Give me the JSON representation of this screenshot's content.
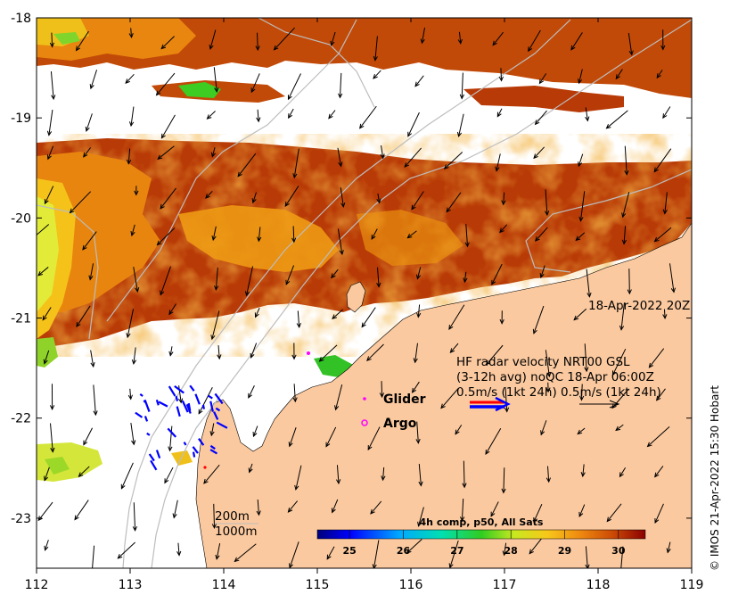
{
  "timestamp_label": "18-Apr-2022 20Z",
  "hf_radar": {
    "line1": "HF radar velocity  NRT00 GSL",
    "line2": "(3-12h avg) noQC 18-Apr 06:00Z",
    "line3": "0.5m/s (1kt 24h)   0.5m/s (1kt 24h)"
  },
  "legend": {
    "glider": "Glider",
    "argo": "Argo",
    "glider_color": "#ff00ff",
    "argo_color": "#ff00ff"
  },
  "contours": {
    "shallow": "200m",
    "deep": "1000m"
  },
  "colorbar": {
    "title": "4h comp, p50, All Sats",
    "min": 24.4,
    "max": 30.5,
    "ticks": [
      "25",
      "26",
      "27",
      "28",
      "29",
      "30"
    ],
    "tick_values": [
      25,
      26,
      27,
      28,
      29,
      30
    ]
  },
  "axes": {
    "lon_min": 112,
    "lon_max": 119,
    "lat_min": -23.5,
    "lat_max": -18,
    "x_ticks": [
      "112",
      "113",
      "114",
      "115",
      "116",
      "117",
      "118",
      "119"
    ],
    "y_ticks": [
      "-18",
      "-19",
      "-20",
      "-21",
      "-22",
      "-23"
    ]
  },
  "credit": "© IMOS 21-Apr-2022 15:30 Hobart",
  "colors": {
    "land": "#fbc99f",
    "sst_hot": "#b83a06",
    "sst_warm": "#e2780d",
    "sst_mid": "#f2b215",
    "sst_cool": "#e7ec38",
    "sst_green": "#36cc1f",
    "radar_arrow": "#0000ff",
    "key_arrow_red": "#ff0000"
  }
}
